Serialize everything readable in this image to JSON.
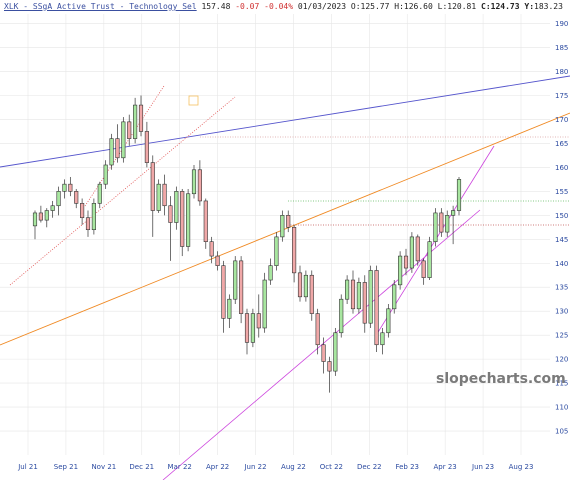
{
  "header": {
    "ticker": "XLK - SSgA Active Trust - Technology Sel",
    "last": "157.48",
    "change": "-0.07",
    "change_pct": "-0.04%",
    "date": "01/03/2023",
    "open_label": "O:",
    "open": "125.77",
    "high_label": "H:",
    "high": "126.60",
    "low_label": "L:",
    "low": "120.81",
    "close_label": "C:",
    "close": "124.73",
    "y_label": "Y:",
    "y_value": "183.23"
  },
  "watermark": "slopecharts.com",
  "colors": {
    "up": "#a8e6a0",
    "down": "#f0a8a8",
    "grid": "#e6e6e6",
    "axis": "#2b4aa0"
  },
  "chart_data": {
    "type": "candlestick",
    "ylim": [
      100,
      192
    ],
    "y_ticks": [
      105,
      110,
      115,
      120,
      125,
      130,
      135,
      140,
      145,
      150,
      155,
      160,
      165,
      170,
      175,
      180,
      185,
      190
    ],
    "x_ticks": [
      "Jul 21",
      "Sep 21",
      "Nov 21",
      "Dec 21",
      "Mar 22",
      "Apr 22",
      "Jun 22",
      "Aug 22",
      "Oct 22",
      "Dec 22",
      "Feb 23",
      "Apr 23",
      "Jun 23",
      "Aug 23"
    ],
    "candles": [
      {
        "o": 147.8,
        "h": 151.0,
        "l": 145.0,
        "c": 150.5
      },
      {
        "o": 150.5,
        "h": 152.0,
        "l": 148.5,
        "c": 149.0
      },
      {
        "o": 149.0,
        "h": 151.5,
        "l": 147.5,
        "c": 151.0
      },
      {
        "o": 151.0,
        "h": 153.0,
        "l": 149.5,
        "c": 152.0
      },
      {
        "o": 152.0,
        "h": 156.0,
        "l": 150.0,
        "c": 155.0
      },
      {
        "o": 155.0,
        "h": 157.5,
        "l": 153.5,
        "c": 156.5
      },
      {
        "o": 156.5,
        "h": 158.0,
        "l": 154.0,
        "c": 155.0
      },
      {
        "o": 155.0,
        "h": 155.5,
        "l": 151.5,
        "c": 152.5
      },
      {
        "o": 152.5,
        "h": 153.5,
        "l": 148.0,
        "c": 149.5
      },
      {
        "o": 149.5,
        "h": 151.0,
        "l": 145.5,
        "c": 147.0
      },
      {
        "o": 147.0,
        "h": 153.5,
        "l": 146.0,
        "c": 152.5
      },
      {
        "o": 152.5,
        "h": 157.0,
        "l": 151.5,
        "c": 156.5
      },
      {
        "o": 156.5,
        "h": 161.5,
        "l": 155.5,
        "c": 160.5
      },
      {
        "o": 160.5,
        "h": 167.0,
        "l": 159.5,
        "c": 166.0
      },
      {
        "o": 166.0,
        "h": 169.0,
        "l": 161.0,
        "c": 162.0
      },
      {
        "o": 162.0,
        "h": 170.5,
        "l": 161.0,
        "c": 169.5
      },
      {
        "o": 169.5,
        "h": 171.0,
        "l": 164.5,
        "c": 166.0
      },
      {
        "o": 166.0,
        "h": 174.5,
        "l": 165.0,
        "c": 173.0
      },
      {
        "o": 173.0,
        "h": 175.0,
        "l": 166.5,
        "c": 167.5
      },
      {
        "o": 167.5,
        "h": 169.5,
        "l": 160.0,
        "c": 161.0
      },
      {
        "o": 161.0,
        "h": 162.5,
        "l": 145.5,
        "c": 151.0
      },
      {
        "o": 151.0,
        "h": 157.5,
        "l": 150.5,
        "c": 156.5
      },
      {
        "o": 156.5,
        "h": 158.5,
        "l": 150.0,
        "c": 152.0
      },
      {
        "o": 152.0,
        "h": 154.0,
        "l": 140.5,
        "c": 148.5
      },
      {
        "o": 148.5,
        "h": 156.0,
        "l": 147.0,
        "c": 155.0
      },
      {
        "o": 155.0,
        "h": 155.5,
        "l": 141.5,
        "c": 143.5
      },
      {
        "o": 143.5,
        "h": 155.5,
        "l": 142.5,
        "c": 154.5
      },
      {
        "o": 154.5,
        "h": 160.5,
        "l": 153.5,
        "c": 159.5
      },
      {
        "o": 159.5,
        "h": 161.5,
        "l": 152.0,
        "c": 153.0
      },
      {
        "o": 153.0,
        "h": 153.5,
        "l": 143.0,
        "c": 144.5
      },
      {
        "o": 144.5,
        "h": 145.5,
        "l": 140.0,
        "c": 141.5
      },
      {
        "o": 141.5,
        "h": 142.5,
        "l": 138.5,
        "c": 139.5
      },
      {
        "o": 139.5,
        "h": 140.5,
        "l": 125.5,
        "c": 128.5
      },
      {
        "o": 128.5,
        "h": 133.5,
        "l": 126.5,
        "c": 132.5
      },
      {
        "o": 132.5,
        "h": 141.5,
        "l": 131.5,
        "c": 140.5
      },
      {
        "o": 140.5,
        "h": 141.5,
        "l": 127.5,
        "c": 129.5
      },
      {
        "o": 129.5,
        "h": 130.5,
        "l": 121.0,
        "c": 123.5
      },
      {
        "o": 123.5,
        "h": 130.5,
        "l": 122.5,
        "c": 129.5
      },
      {
        "o": 129.5,
        "h": 133.5,
        "l": 124.5,
        "c": 126.5
      },
      {
        "o": 126.5,
        "h": 138.0,
        "l": 125.5,
        "c": 136.5
      },
      {
        "o": 136.5,
        "h": 141.0,
        "l": 135.5,
        "c": 139.5
      },
      {
        "o": 139.5,
        "h": 146.5,
        "l": 138.5,
        "c": 145.5
      },
      {
        "o": 145.5,
        "h": 151.0,
        "l": 144.5,
        "c": 150.0
      },
      {
        "o": 150.0,
        "h": 151.0,
        "l": 146.5,
        "c": 147.5
      },
      {
        "o": 147.5,
        "h": 148.0,
        "l": 136.0,
        "c": 138.0
      },
      {
        "o": 138.0,
        "h": 139.5,
        "l": 132.0,
        "c": 133.0
      },
      {
        "o": 133.0,
        "h": 138.5,
        "l": 132.0,
        "c": 137.5
      },
      {
        "o": 137.5,
        "h": 138.5,
        "l": 128.0,
        "c": 129.5
      },
      {
        "o": 129.5,
        "h": 130.5,
        "l": 121.0,
        "c": 123.0
      },
      {
        "o": 123.0,
        "h": 124.5,
        "l": 117.0,
        "c": 119.5
      },
      {
        "o": 119.5,
        "h": 120.5,
        "l": 113.0,
        "c": 117.5
      },
      {
        "o": 117.5,
        "h": 126.5,
        "l": 116.5,
        "c": 125.5
      },
      {
        "o": 125.5,
        "h": 133.5,
        "l": 124.5,
        "c": 132.5
      },
      {
        "o": 132.5,
        "h": 137.5,
        "l": 131.5,
        "c": 136.5
      },
      {
        "o": 136.5,
        "h": 138.5,
        "l": 129.5,
        "c": 130.5
      },
      {
        "o": 130.5,
        "h": 137.0,
        "l": 129.5,
        "c": 136.0
      },
      {
        "o": 136.0,
        "h": 137.5,
        "l": 125.5,
        "c": 127.5
      },
      {
        "o": 127.5,
        "h": 139.5,
        "l": 126.5,
        "c": 138.5
      },
      {
        "o": 138.5,
        "h": 139.5,
        "l": 121.5,
        "c": 123.0
      },
      {
        "o": 123.0,
        "h": 126.5,
        "l": 121.0,
        "c": 125.5
      },
      {
        "o": 125.5,
        "h": 131.5,
        "l": 124.5,
        "c": 130.5
      },
      {
        "o": 130.5,
        "h": 136.5,
        "l": 129.5,
        "c": 135.5
      },
      {
        "o": 135.5,
        "h": 142.5,
        "l": 134.5,
        "c": 141.5
      },
      {
        "o": 141.5,
        "h": 143.0,
        "l": 137.5,
        "c": 139.0
      },
      {
        "o": 139.0,
        "h": 146.5,
        "l": 138.0,
        "c": 145.5
      },
      {
        "o": 145.5,
        "h": 146.0,
        "l": 139.5,
        "c": 140.5
      },
      {
        "o": 140.5,
        "h": 141.0,
        "l": 135.5,
        "c": 137.0
      },
      {
        "o": 137.0,
        "h": 145.5,
        "l": 136.5,
        "c": 144.5
      },
      {
        "o": 144.5,
        "h": 151.5,
        "l": 143.5,
        "c": 150.5
      },
      {
        "o": 150.5,
        "h": 151.5,
        "l": 145.5,
        "c": 146.5
      },
      {
        "o": 146.5,
        "h": 151.0,
        "l": 145.5,
        "c": 150.0
      },
      {
        "o": 150.0,
        "h": 152.0,
        "l": 144.0,
        "c": 151.0
      },
      {
        "o": 151.0,
        "h": 158.0,
        "l": 150.0,
        "c": 157.5
      }
    ]
  }
}
